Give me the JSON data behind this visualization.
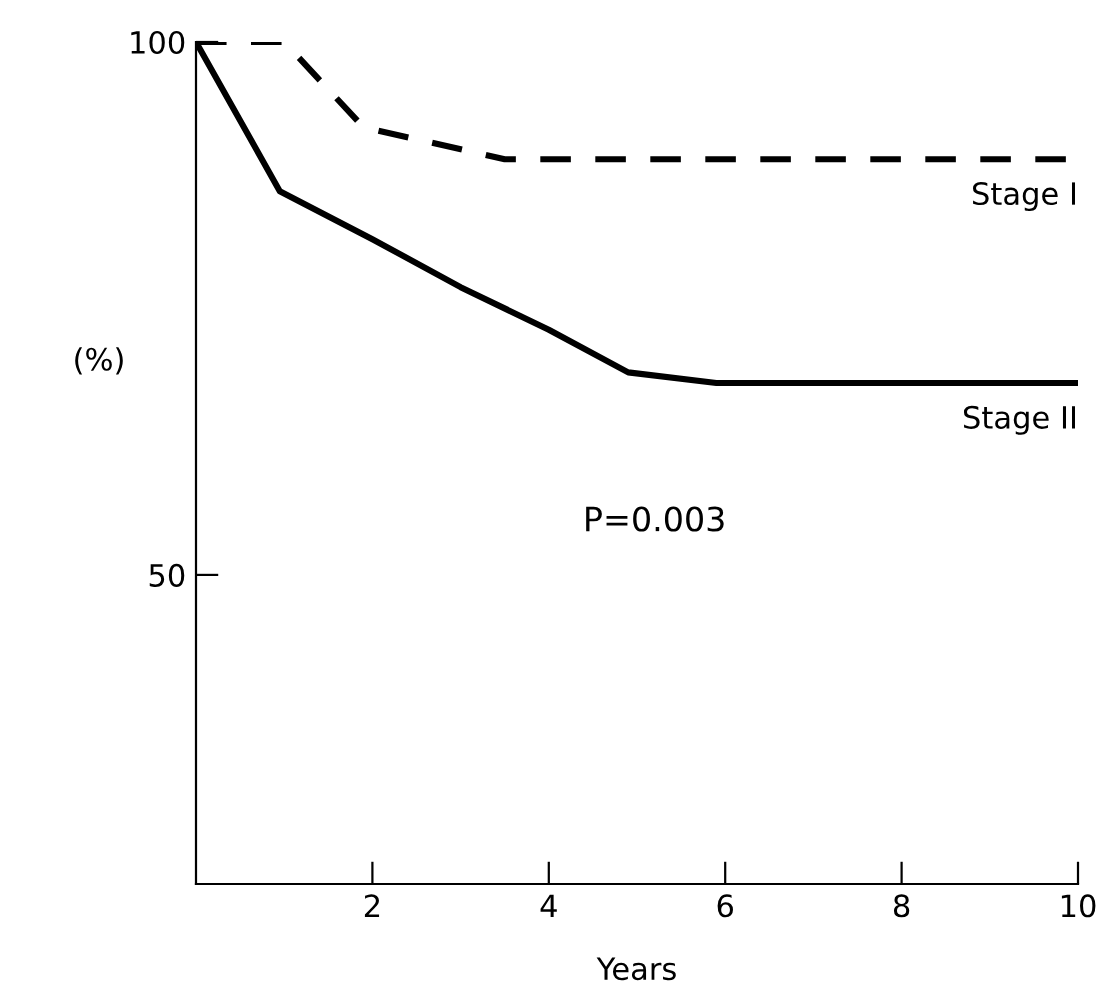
{
  "chart_data": {
    "type": "line",
    "xlabel": "Years",
    "ylabel": "(%)",
    "xlim": [
      0,
      10
    ],
    "ylim": [
      21,
      100
    ],
    "xticks": [
      2,
      4,
      6,
      8,
      10
    ],
    "yticks": [
      50,
      100
    ],
    "grid": false,
    "legend": false,
    "series": [
      {
        "name": "Stage I",
        "color": "#000000",
        "line_style": "dashed",
        "x": [
          0,
          1,
          1.9,
          3.5,
          10
        ],
        "values": [
          100,
          100,
          92,
          89,
          89
        ]
      },
      {
        "name": "Stage II",
        "color": "#000000",
        "line_style": "solid",
        "x": [
          0,
          0.95,
          2,
          3,
          4,
          4.9,
          5.9,
          10
        ],
        "values": [
          100,
          86,
          81.5,
          77,
          73,
          69,
          68,
          68
        ]
      }
    ],
    "annotations": [
      "P=0.003"
    ]
  }
}
